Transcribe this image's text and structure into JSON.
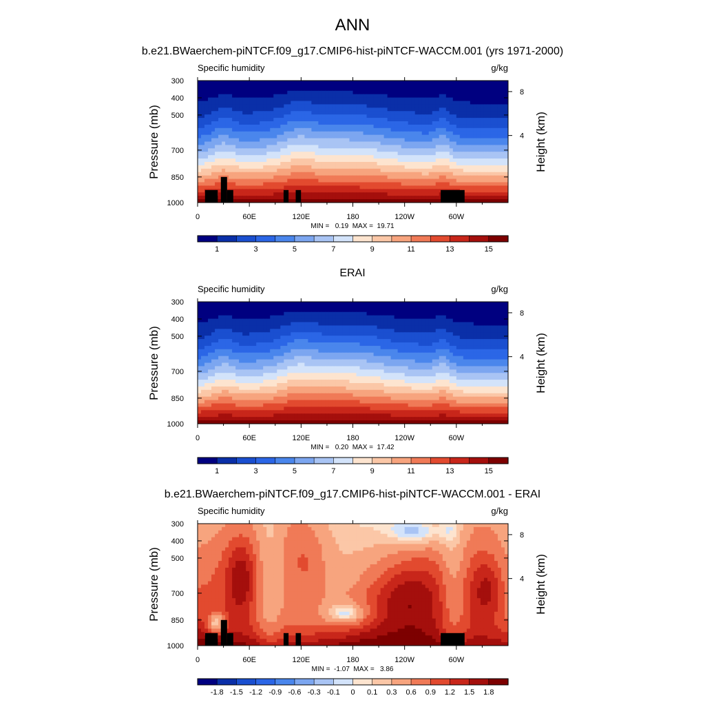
{
  "title": "ANN",
  "chart_data": [
    {
      "type": "heatmap",
      "title": "b.e21.BWaerchem-piNTCF.f09_g17.CMIP6-hist-piNTCF-WACCM.001 (yrs 1971-2000)",
      "left_label": "Specific humidity",
      "units": "g/kg",
      "ylabel": "Pressure (mb)",
      "ylabel_right": "Height (km)",
      "y_ticks": [
        "300",
        "400",
        "500",
        "700",
        "850",
        "1000"
      ],
      "y_ticks_right": [
        "8",
        "4"
      ],
      "x_ticks": [
        "0",
        "60E",
        "120E",
        "180",
        "120W",
        "60W"
      ],
      "stats": "MIN =   0.19  MAX =  19.71",
      "min": 0.19,
      "max": 19.71,
      "colorbar_labels": [
        "1",
        "3",
        "5",
        "7",
        "9",
        "11",
        "13",
        "15"
      ],
      "n_colors": 16,
      "topography": true
    },
    {
      "type": "heatmap",
      "title": "ERAI",
      "left_label": "Specific humidity",
      "units": "g/kg",
      "ylabel": "Pressure (mb)",
      "ylabel_right": "Height (km)",
      "y_ticks": [
        "300",
        "400",
        "500",
        "700",
        "850",
        "1000"
      ],
      "y_ticks_right": [
        "8",
        "4"
      ],
      "x_ticks": [
        "0",
        "60E",
        "120E",
        "180",
        "120W",
        "60W"
      ],
      "stats": "MIN =   0.20  MAX =  17.42",
      "min": 0.2,
      "max": 17.42,
      "colorbar_labels": [
        "1",
        "3",
        "5",
        "7",
        "9",
        "11",
        "13",
        "15"
      ],
      "n_colors": 16,
      "topography": false
    },
    {
      "type": "heatmap",
      "title": "b.e21.BWaerchem-piNTCF.f09_g17.CMIP6-hist-piNTCF-WACCM.001 - ERAI",
      "left_label": "Specific humidity",
      "units": "g/kg",
      "ylabel": "Pressure (mb)",
      "ylabel_right": "Height (km)",
      "y_ticks": [
        "300",
        "400",
        "500",
        "700",
        "850",
        "1000"
      ],
      "y_ticks_right": [
        "8",
        "4"
      ],
      "x_ticks": [
        "0",
        "60E",
        "120E",
        "180",
        "120W",
        "60W"
      ],
      "stats": "MIN =  -1.07  MAX =   3.86",
      "min": -1.07,
      "max": 3.86,
      "colorbar_labels": [
        "-1.8",
        "-1.5",
        "-1.2",
        "-0.9",
        "-0.6",
        "-0.3",
        "-0.1",
        "0",
        "0.1",
        "0.3",
        "0.6",
        "0.9",
        "1.2",
        "1.5",
        "1.8"
      ],
      "n_colors": 16,
      "topography": true
    }
  ],
  "colors": {
    "palette": [
      "#000080",
      "#0a2fa8",
      "#1a4fd0",
      "#2b66e6",
      "#4a86ec",
      "#7ca6f0",
      "#a9c4f4",
      "#d3e3fa",
      "#fde4cf",
      "#fbc7a7",
      "#f7a47e",
      "#f07a57",
      "#e24a2f",
      "#c8261a",
      "#a40f0c",
      "#7d0000"
    ],
    "topography": "#000000"
  }
}
